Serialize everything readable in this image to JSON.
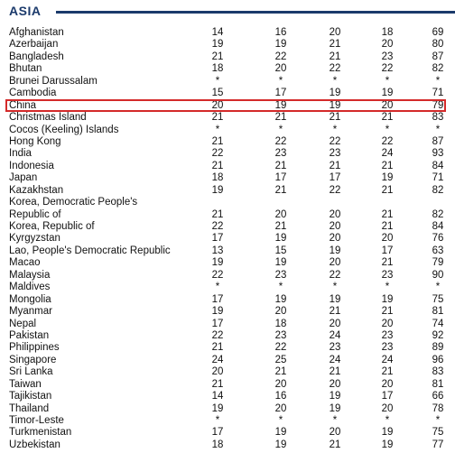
{
  "section": {
    "title": "ASIA"
  },
  "rows": [
    {
      "name": "Afghanistan",
      "v": [
        "14",
        "16",
        "20",
        "18",
        "69"
      ]
    },
    {
      "name": "Azerbaijan",
      "v": [
        "19",
        "19",
        "21",
        "20",
        "80"
      ]
    },
    {
      "name": "Bangladesh",
      "v": [
        "21",
        "22",
        "21",
        "23",
        "87"
      ]
    },
    {
      "name": "Bhutan",
      "v": [
        "18",
        "20",
        "22",
        "22",
        "82"
      ]
    },
    {
      "name": "Brunei Darussalam",
      "v": [
        "*",
        "*",
        "*",
        "*",
        "*"
      ]
    },
    {
      "name": "Cambodia",
      "v": [
        "15",
        "17",
        "19",
        "19",
        "71"
      ]
    },
    {
      "name": "China",
      "v": [
        "20",
        "19",
        "19",
        "20",
        "79"
      ]
    },
    {
      "name": "Christmas Island",
      "v": [
        "21",
        "21",
        "21",
        "21",
        "83"
      ]
    },
    {
      "name": "Cocos (Keeling) Islands",
      "v": [
        "*",
        "*",
        "*",
        "*",
        "*"
      ]
    },
    {
      "name": "Hong Kong",
      "v": [
        "21",
        "22",
        "22",
        "22",
        "87"
      ]
    },
    {
      "name": "India",
      "v": [
        "22",
        "23",
        "23",
        "24",
        "93"
      ]
    },
    {
      "name": "Indonesia",
      "v": [
        "21",
        "21",
        "21",
        "21",
        "84"
      ]
    },
    {
      "name": "Japan",
      "v": [
        "18",
        "17",
        "17",
        "19",
        "71"
      ]
    },
    {
      "name": "Kazakhstan",
      "v": [
        "19",
        "21",
        "22",
        "21",
        "82"
      ]
    },
    {
      "name": "Korea, Democratic People's",
      "v": [
        "",
        "",
        "",
        "",
        ""
      ]
    },
    {
      "name": "Republic of",
      "v": [
        "21",
        "20",
        "20",
        "21",
        "82"
      ]
    },
    {
      "name": "Korea, Republic of",
      "v": [
        "22",
        "21",
        "20",
        "21",
        "84"
      ]
    },
    {
      "name": "Kyrgyzstan",
      "v": [
        "17",
        "19",
        "20",
        "20",
        "76"
      ]
    },
    {
      "name": "Lao, People's Democratic Republic",
      "v": [
        "13",
        "15",
        "19",
        "17",
        "63"
      ]
    },
    {
      "name": "Macao",
      "v": [
        "19",
        "19",
        "20",
        "21",
        "79"
      ]
    },
    {
      "name": "Malaysia",
      "v": [
        "22",
        "23",
        "22",
        "23",
        "90"
      ]
    },
    {
      "name": "Maldives",
      "v": [
        "*",
        "*",
        "*",
        "*",
        "*"
      ]
    },
    {
      "name": "Mongolia",
      "v": [
        "17",
        "19",
        "19",
        "19",
        "75"
      ]
    },
    {
      "name": "Myanmar",
      "v": [
        "19",
        "20",
        "21",
        "21",
        "81"
      ]
    },
    {
      "name": "Nepal",
      "v": [
        "17",
        "18",
        "20",
        "20",
        "74"
      ]
    },
    {
      "name": "Pakistan",
      "v": [
        "22",
        "23",
        "24",
        "23",
        "92"
      ]
    },
    {
      "name": "Philippines",
      "v": [
        "21",
        "22",
        "23",
        "23",
        "89"
      ]
    },
    {
      "name": "Singapore",
      "v": [
        "24",
        "25",
        "24",
        "24",
        "96"
      ]
    },
    {
      "name": "Sri Lanka",
      "v": [
        "20",
        "21",
        "21",
        "21",
        "83"
      ]
    },
    {
      "name": "Taiwan",
      "v": [
        "21",
        "20",
        "20",
        "20",
        "81"
      ]
    },
    {
      "name": "Tajikistan",
      "v": [
        "14",
        "16",
        "19",
        "17",
        "66"
      ]
    },
    {
      "name": "Thailand",
      "v": [
        "19",
        "20",
        "19",
        "20",
        "78"
      ]
    },
    {
      "name": "Timor-Leste",
      "v": [
        "*",
        "*",
        "*",
        "*",
        "*"
      ]
    },
    {
      "name": "Turkmenistan",
      "v": [
        "17",
        "19",
        "20",
        "19",
        "75"
      ]
    },
    {
      "name": "Uzbekistan",
      "v": [
        "18",
        "19",
        "21",
        "19",
        "77"
      ]
    }
  ],
  "highlight": {
    "row": "China",
    "color": "#d42a2a"
  }
}
